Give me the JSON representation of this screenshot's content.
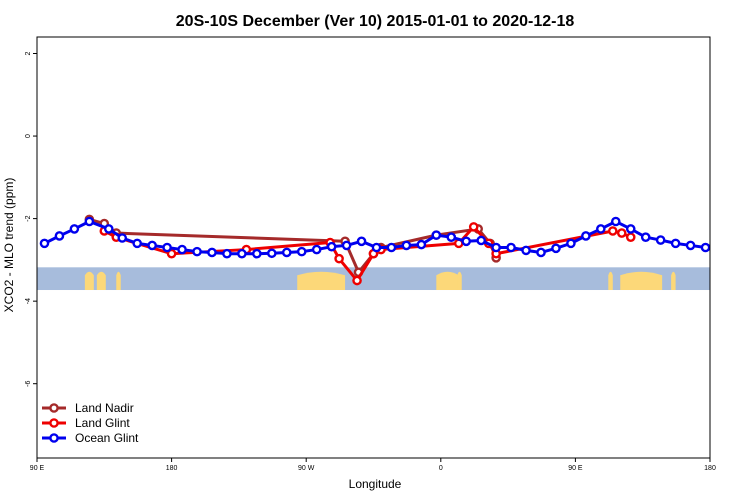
{
  "chart_data": {
    "type": "line",
    "title": "20S-10S December (Ver 10)   2015-01-01 to 2020-12-18",
    "xlabel": "Longitude",
    "ylabel": "XCO2 - MLO trend (ppm)",
    "xlim": [
      90,
      540
    ],
    "ylim": [
      -7.8,
      2.4
    ],
    "xticks": [
      {
        "value": 90,
        "label": "90 E"
      },
      {
        "value": 180,
        "label": "180"
      },
      {
        "value": 270,
        "label": "90 W"
      },
      {
        "value": 360,
        "label": "0"
      },
      {
        "value": 450,
        "label": "90 E"
      },
      {
        "value": 540,
        "label": "180"
      }
    ],
    "yticks": [
      {
        "value": 2,
        "label": "2"
      },
      {
        "value": 0,
        "label": "0"
      },
      {
        "value": -2,
        "label": "-2"
      },
      {
        "value": -4,
        "label": "-4"
      },
      {
        "value": -6,
        "label": "-6"
      }
    ],
    "land_band": {
      "y_range": [
        -3.73,
        -3.18
      ],
      "ocean_color": "#a7bcdc",
      "land_color": "#fcd879",
      "land_segments": [
        [
          122,
          128
        ],
        [
          130,
          136
        ],
        [
          143,
          146
        ],
        [
          264,
          296
        ],
        [
          357,
          372
        ],
        [
          371,
          374
        ],
        [
          472,
          475
        ],
        [
          480,
          508
        ],
        [
          514,
          517
        ]
      ]
    },
    "legend_position": "bottom-left",
    "series": [
      {
        "name": "Land Nadir",
        "color": "#a52a2a",
        "x": [
          125,
          135,
          143,
          296,
          305,
          315,
          320,
          357,
          385,
          393,
          397
        ],
        "y": [
          -2.02,
          -2.12,
          -2.35,
          -2.55,
          -3.3,
          -2.85,
          -2.7,
          -2.4,
          -2.25,
          -2.6,
          -2.95
        ]
      },
      {
        "name": "Land Glint",
        "color": "#ee0000",
        "x": [
          135,
          143,
          180,
          230,
          286,
          292,
          304,
          315,
          320,
          372,
          382,
          392,
          397,
          475,
          481,
          487
        ],
        "y": [
          -2.3,
          -2.45,
          -2.85,
          -2.75,
          -2.58,
          -2.97,
          -3.5,
          -2.85,
          -2.75,
          -2.6,
          -2.2,
          -2.6,
          -2.85,
          -2.3,
          -2.35,
          -2.45
        ]
      },
      {
        "name": "Ocean Glint",
        "color": "#0000ee",
        "x": [
          95,
          105,
          115,
          125,
          138,
          147,
          157,
          167,
          177,
          187,
          197,
          207,
          217,
          227,
          237,
          247,
          257,
          267,
          277,
          287,
          297,
          307,
          317,
          327,
          337,
          347,
          357,
          367,
          377,
          387,
          397,
          407,
          417,
          427,
          437,
          447,
          457,
          467,
          477,
          487,
          497,
          507,
          517,
          527,
          537
        ],
        "y": [
          -2.6,
          -2.42,
          -2.25,
          -2.07,
          -2.25,
          -2.47,
          -2.6,
          -2.65,
          -2.7,
          -2.75,
          -2.8,
          -2.82,
          -2.85,
          -2.85,
          -2.85,
          -2.84,
          -2.82,
          -2.8,
          -2.75,
          -2.68,
          -2.65,
          -2.55,
          -2.7,
          -2.7,
          -2.65,
          -2.63,
          -2.4,
          -2.45,
          -2.55,
          -2.53,
          -2.7,
          -2.7,
          -2.77,
          -2.82,
          -2.72,
          -2.6,
          -2.42,
          -2.25,
          -2.07,
          -2.25,
          -2.45,
          -2.52,
          -2.6,
          -2.65,
          -2.7
        ]
      }
    ]
  }
}
